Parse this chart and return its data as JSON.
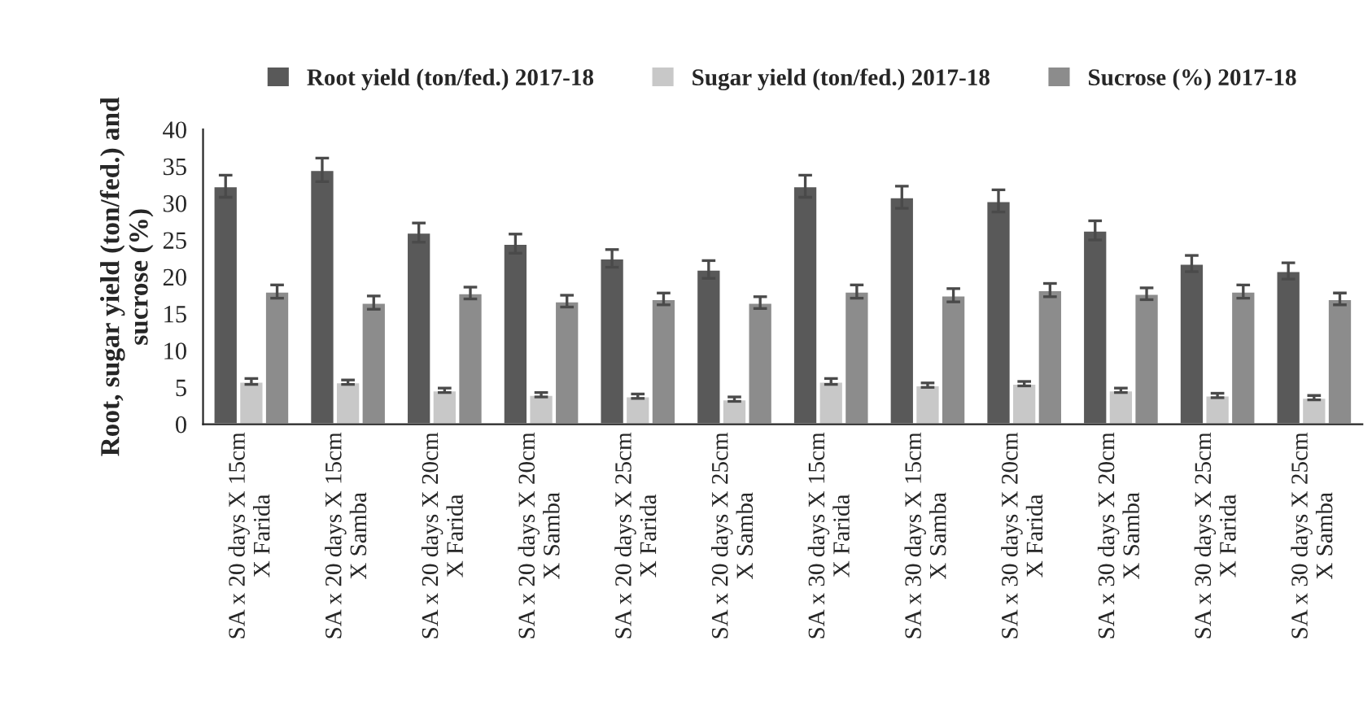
{
  "chart_data": {
    "type": "bar",
    "ylabel": "Root, sugar yield (ton/fed.) and\nsucrose (%)",
    "categories": [
      "SA x 20 days X 15cm\nX Farida",
      "SA x 20 days X 15cm\nX Samba",
      "SA x 20 days X 20cm\nX Farida",
      "SA x 20 days X 20cm\nX Samba",
      "SA x 20 days X 25cm\nX Farida",
      "SA x 20 days X 25cm\nX Samba",
      "SA x 30 days X 15cm\nX Farida",
      "SA x 30 days X 15cm\nX Samba",
      "SA x 30 days X 20cm\nX Farida",
      "SA x 30 days X 20cm\nX Samba",
      "SA x 30 days X 25cm\nX Farida",
      "SA x 30 days X 25cm\nX Samba"
    ],
    "series": [
      {
        "name": "Root yield (ton/fed.) 2017-18",
        "color": "#595959",
        "values": [
          32.3,
          34.5,
          26.0,
          24.5,
          22.5,
          21.0,
          32.3,
          30.8,
          30.3,
          26.3,
          21.8,
          20.8
        ],
        "errors": [
          1.5,
          1.6,
          1.3,
          1.3,
          1.2,
          1.2,
          1.5,
          1.5,
          1.5,
          1.3,
          1.1,
          1.1
        ]
      },
      {
        "name": "Sugar yield (ton/fed.) 2017-18",
        "color": "#c8c8c8",
        "values": [
          5.8,
          5.7,
          4.6,
          4.0,
          3.8,
          3.4,
          5.8,
          5.3,
          5.5,
          4.6,
          3.9,
          3.6
        ],
        "errors": [
          0.4,
          0.3,
          0.3,
          0.3,
          0.3,
          0.3,
          0.4,
          0.3,
          0.3,
          0.3,
          0.3,
          0.3
        ]
      },
      {
        "name": "Sucrose (%) 2017-18",
        "color": "#8c8c8c",
        "values": [
          18.0,
          16.5,
          17.8,
          16.7,
          17.0,
          16.5,
          18.0,
          17.5,
          18.2,
          17.7,
          18.0,
          17.0
        ],
        "errors": [
          0.9,
          0.9,
          0.8,
          0.8,
          0.8,
          0.8,
          0.9,
          0.9,
          0.9,
          0.8,
          0.9,
          0.8
        ]
      }
    ],
    "ylim": [
      0,
      40
    ],
    "yticks": [
      0,
      5,
      10,
      15,
      20,
      25,
      30,
      35,
      40
    ],
    "grid": false,
    "legend": "top"
  }
}
